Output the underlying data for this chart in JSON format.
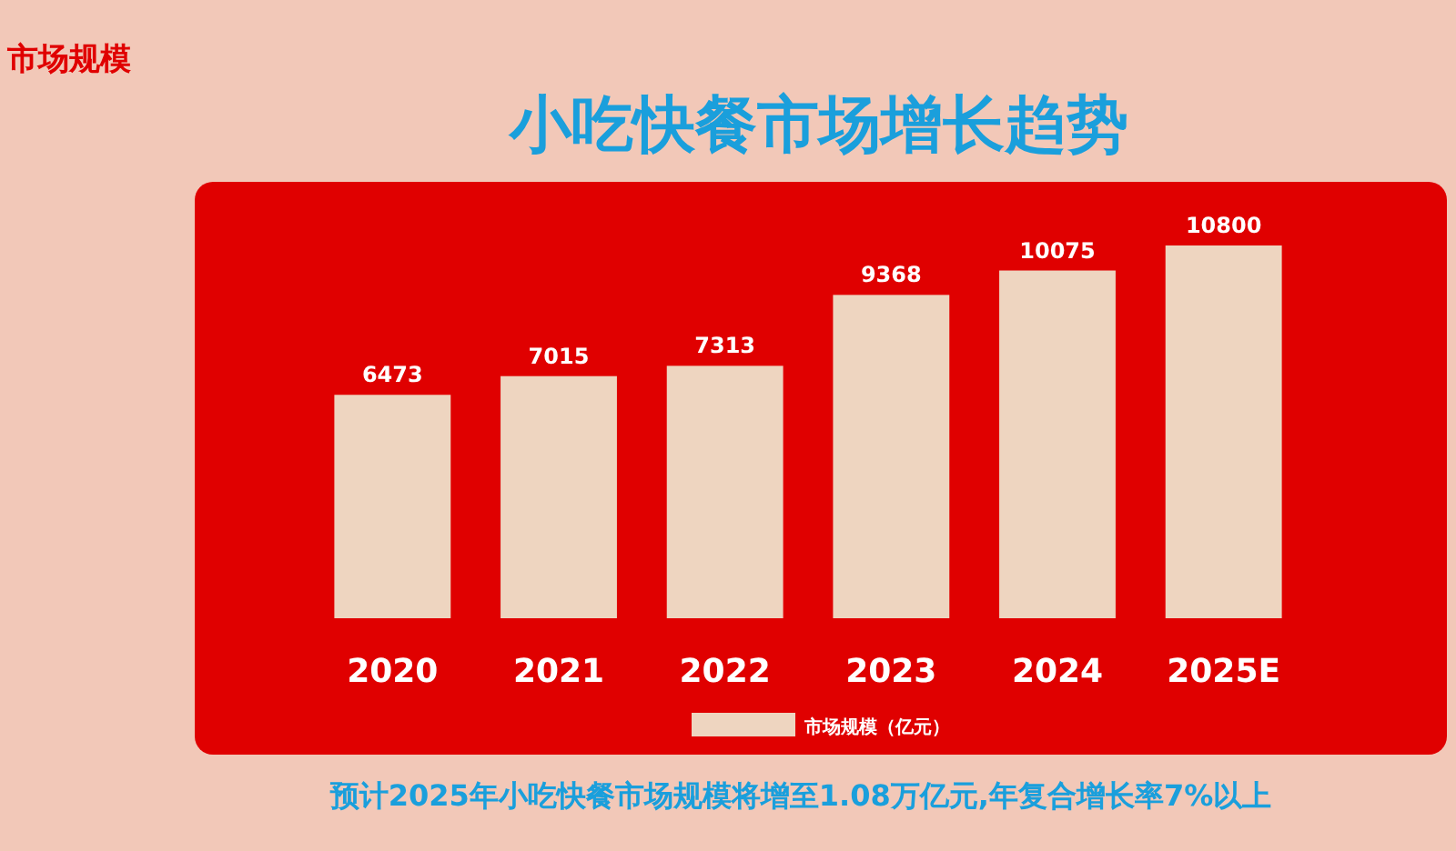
{
  "chart_data": {
    "type": "bar",
    "title": "小吃快餐市场增长趋势",
    "categories": [
      "2020",
      "2021",
      "2022",
      "2023",
      "2024",
      "2025E"
    ],
    "series": [
      {
        "name": "市场规模（亿元）",
        "color": "#eed5c0",
        "values": [
          6473,
          7015,
          7313,
          9368,
          10075,
          10800
        ]
      }
    ],
    "data_labels": true,
    "legend": "bottom",
    "annotations": [
      "市场规模",
      "预计2025年小吃快餐市场规模将增至1.08万亿元,年复合增长率7%以上"
    ]
  }
}
